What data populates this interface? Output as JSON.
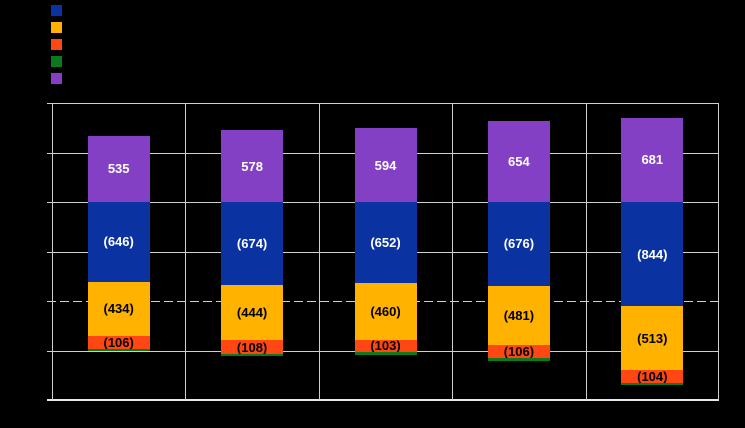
{
  "canvas": {
    "background": "#000000",
    "grid_color": "#CFCFCF",
    "axis_color": "#E8E8E8"
  },
  "legend": {
    "position": "top-left",
    "labels_visible": false
  },
  "chart_data": {
    "type": "bar",
    "subtype": "stacked-column",
    "title": "",
    "categories": [
      "",
      "",
      "",
      "",
      ""
    ],
    "x_tick_labels_visible": false,
    "y_tick_labels_visible": false,
    "ylim": [
      -1600,
      800
    ],
    "gridline_step": 400,
    "dashed_line_y": -800,
    "grid": true,
    "legend_position": "top-left",
    "series": [
      {
        "name": "series-blue",
        "color": "#0A33A1",
        "label_color": "#FFFFFF",
        "legend_label": "",
        "values": [
          -646,
          -674,
          -652,
          -676,
          -844
        ],
        "labels": [
          "(646)",
          "(674)",
          "(652)",
          "(676)",
          "(844)"
        ]
      },
      {
        "name": "series-amber",
        "color": "#FFB200",
        "label_color": "#000000",
        "legend_label": "",
        "values": [
          -434,
          -444,
          -460,
          -481,
          -513
        ],
        "labels": [
          "(434)",
          "(444)",
          "(460)",
          "(481)",
          "(513)"
        ]
      },
      {
        "name": "series-orange",
        "color": "#FF4713",
        "label_color": "#000000",
        "legend_label": "",
        "values": [
          -106,
          -108,
          -103,
          -106,
          -104
        ],
        "labels": [
          "(106)",
          "(108)",
          "(103)",
          "(106)",
          "(104)"
        ]
      },
      {
        "name": "series-green",
        "color": "#0B7A1F",
        "label_color": "#FFFFFF",
        "legend_label": "",
        "values": [
          -18,
          -18,
          -18,
          -18,
          -18
        ],
        "labels": [
          "",
          "",
          "",
          "",
          ""
        ]
      },
      {
        "name": "series-purple",
        "color": "#8440C4",
        "label_color": "#FFFFFF",
        "legend_label": "",
        "values": [
          535,
          578,
          594,
          654,
          681
        ],
        "labels": [
          "535",
          "578",
          "594",
          "654",
          "681"
        ]
      }
    ]
  }
}
